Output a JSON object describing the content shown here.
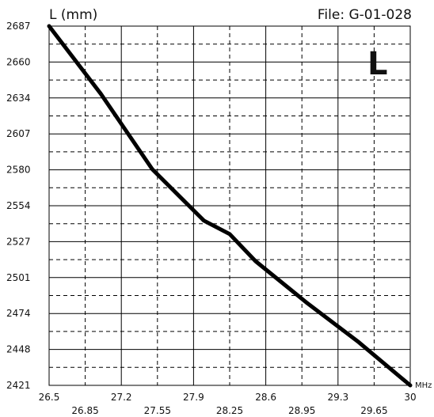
{
  "chart_data": {
    "type": "line",
    "ylabel": "L (mm)",
    "xunit": "MHz",
    "file_label": "File:  G-01-028",
    "corner_mark": "L",
    "xlim": [
      26.5,
      30
    ],
    "ylim": [
      2421,
      2687
    ],
    "x_ticks_upper": [
      "26.5",
      "27.2",
      "27.9",
      "28.6",
      "29.3",
      "30"
    ],
    "x_ticks_lower": [
      "26.85",
      "27.55",
      "28.25",
      "28.95",
      "29.65"
    ],
    "y_ticks": [
      "2687",
      "2660",
      "2634",
      "2607",
      "2580",
      "2554",
      "2527",
      "2501",
      "2474",
      "2448",
      "2421"
    ],
    "grid": true,
    "series": [
      {
        "x": [
          26.5,
          27.0,
          27.5,
          28.0,
          28.25,
          28.5,
          29.0,
          29.5,
          30.0
        ],
        "y": [
          2687,
          2637,
          2581,
          2543,
          2533,
          2513,
          2482,
          2453,
          2421
        ]
      }
    ]
  }
}
